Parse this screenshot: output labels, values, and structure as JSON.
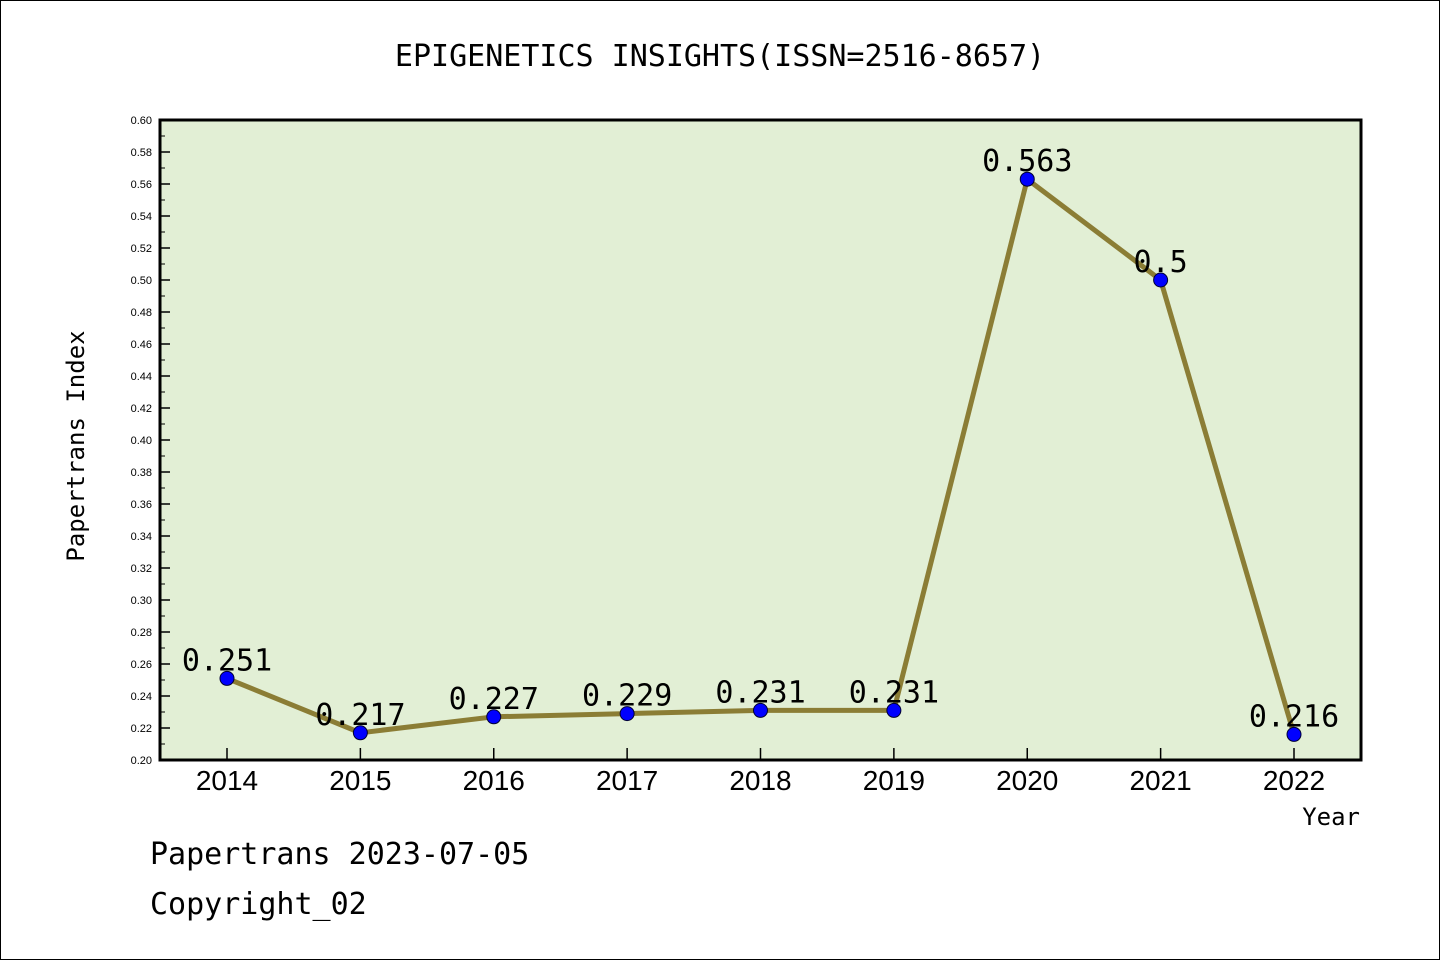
{
  "chart_data": {
    "type": "line",
    "title": "EPIGENETICS INSIGHTS(ISSN=2516-8657)",
    "xlabel": "Year",
    "ylabel": "Papertrans Index",
    "categories": [
      "2014",
      "2015",
      "2016",
      "2017",
      "2018",
      "2019",
      "2020",
      "2021",
      "2022"
    ],
    "values": [
      0.251,
      0.217,
      0.227,
      0.229,
      0.231,
      0.231,
      0.563,
      0.5,
      0.216
    ],
    "data_labels": [
      "0.251",
      "0.217",
      "0.227",
      "0.229",
      "0.231",
      "0.231",
      "0.563",
      "0.5",
      "0.216"
    ],
    "ylim": [
      0.2,
      0.6
    ],
    "y_ticks": [
      "0.20",
      "0.22",
      "0.24",
      "0.26",
      "0.28",
      "0.30",
      "0.32",
      "0.34",
      "0.36",
      "0.38",
      "0.40",
      "0.42",
      "0.44",
      "0.46",
      "0.48",
      "0.50",
      "0.52",
      "0.54",
      "0.56",
      "0.58",
      "0.60"
    ],
    "grid": false,
    "colors": {
      "line": "#8b7d35",
      "marker": "#0000ff",
      "plot_background": "#e2efd5",
      "axis": "#000000"
    }
  },
  "footer": {
    "line1": "Papertrans 2023-07-05",
    "line2": "Copyright_02"
  }
}
